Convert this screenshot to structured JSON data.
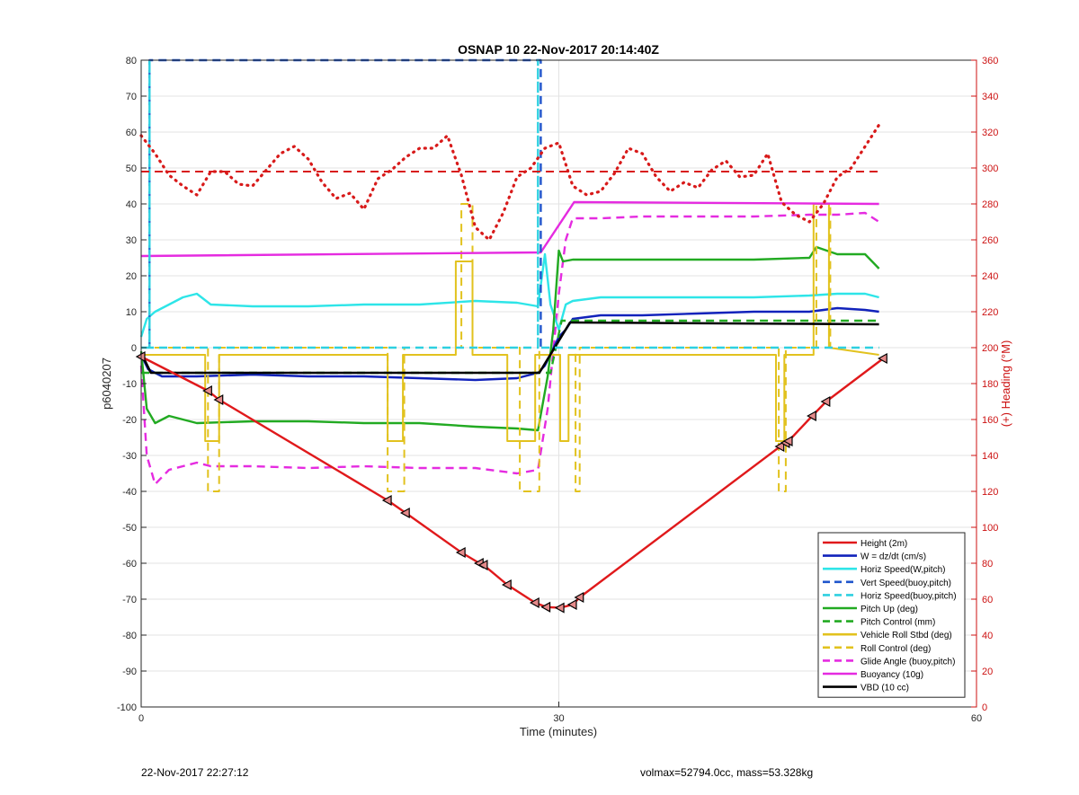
{
  "chart_data": {
    "type": "line",
    "title": "OSNAP 10 22-Nov-2017 20:14:40Z",
    "xlabel": "Time (minutes)",
    "ylabel": "p6040207",
    "y2label": "(+) Heading (°M)",
    "xlim": [
      0,
      60
    ],
    "ylim": [
      -100,
      80
    ],
    "y2lim": [
      0,
      360
    ],
    "xticks": [
      0,
      30,
      60
    ],
    "yticks": [
      -100,
      -90,
      -80,
      -70,
      -60,
      -50,
      -40,
      -30,
      -20,
      -10,
      0,
      10,
      20,
      30,
      40,
      50,
      60,
      70,
      80
    ],
    "y2ticks": [
      0,
      20,
      40,
      60,
      80,
      100,
      120,
      140,
      160,
      180,
      200,
      220,
      240,
      260,
      280,
      300,
      320,
      340,
      360
    ],
    "grid": true,
    "legend_position": "bottom-right",
    "colors": {
      "height": "#e0191b",
      "w": "#1122bb",
      "horiz_speed": "#2ee5e8",
      "vert_speed_buoy": "#1f55cc",
      "horiz_speed_buoy": "#2ed0e0",
      "pitch_up": "#22aa22",
      "pitch_control": "#22aa22",
      "vehicle_roll": "#e2c21e",
      "roll_control": "#e2c21e",
      "glide_angle": "#e52be0",
      "buoyancy": "#e52be0",
      "vbd": "#000000",
      "heading": "#d81a1a",
      "heading_axis": "#cc1111"
    },
    "series": [
      {
        "name": "Height (2m)",
        "style": "solid",
        "x": [
          0,
          4.8,
          5.6,
          17.7,
          19,
          23,
          24.3,
          24.6,
          26.3,
          28.3,
          29.1,
          30.1,
          31,
          31.5,
          45.9,
          46.3,
          46.5,
          48.2,
          49.2,
          53.3
        ],
        "y": [
          -2.5,
          -12,
          -14.5,
          -42.5,
          -46,
          -57,
          -60,
          -60.5,
          -66,
          -71,
          -72.2,
          -72.4,
          -71.5,
          -69.5,
          -27.5,
          -26.5,
          -26,
          -19,
          -15,
          -3
        ]
      },
      {
        "name": "W = dz/dt (cm/s)",
        "style": "solid",
        "x": [
          0,
          0.5,
          1.5,
          4,
          8,
          12,
          16,
          20,
          24,
          27,
          28.5,
          29,
          30,
          30.5,
          31,
          33,
          36,
          40,
          44,
          48,
          50,
          52,
          53
        ],
        "y": [
          -2,
          -6,
          -8,
          -8,
          -7.5,
          -8,
          -8,
          -8.5,
          -9,
          -8.5,
          -7,
          -5,
          3,
          5,
          8,
          9,
          9,
          9.5,
          10,
          10,
          11,
          10.5,
          10
        ]
      },
      {
        "name": "Horiz Speed(W,pitch)",
        "style": "solid",
        "x": [
          0,
          0.4,
          1,
          2,
          3,
          4,
          5,
          8,
          12,
          16,
          20,
          24,
          27,
          28.5,
          29,
          29.4,
          30,
          30.5,
          31,
          33,
          36,
          40,
          44,
          48,
          50,
          52,
          53
        ],
        "y": [
          3,
          8,
          10,
          12,
          14,
          15,
          12,
          11.5,
          11.5,
          12,
          12,
          13,
          12.5,
          11.5,
          26,
          12,
          5,
          12,
          13,
          14,
          14,
          14,
          14,
          14.5,
          15,
          15,
          14
        ]
      },
      {
        "name": "Vert Speed(buoy,pitch)",
        "style": "dashed",
        "x": [
          0.6,
          0.6,
          28.7,
          28.7
        ],
        "y": [
          0,
          80,
          80,
          0
        ]
      },
      {
        "name": "Horiz Speed(buoy,pitch)",
        "style": "dashed",
        "x": [
          0,
          0.6,
          0.6,
          0.6,
          28.5,
          28.5,
          28.5,
          53
        ],
        "y": [
          0,
          0,
          80,
          0,
          0,
          80,
          0,
          0
        ]
      },
      {
        "name": "Pitch Up (deg)",
        "style": "solid",
        "x": [
          0,
          0.4,
          1,
          2,
          4,
          8,
          12,
          16,
          20,
          24,
          27,
          28.5,
          29.2,
          29.6,
          30,
          30.3,
          31,
          33,
          36,
          40,
          44,
          48,
          48.5,
          50,
          52,
          53
        ],
        "y": [
          -1,
          -17,
          -21,
          -19,
          -21,
          -20.5,
          -20.5,
          -21,
          -21,
          -22,
          -22.5,
          -23,
          -8,
          5,
          27,
          24,
          24.5,
          24.5,
          24.5,
          24.5,
          24.5,
          25,
          28,
          26,
          26,
          22
        ]
      },
      {
        "name": "Pitch Control (mm)",
        "style": "dashed",
        "x": [
          0,
          29.4,
          30.2,
          53
        ],
        "y": [
          -7,
          -7,
          7.5,
          7.5
        ]
      },
      {
        "name": "Vehicle Roll Stbd (deg)",
        "style": "solid",
        "x": [
          0,
          4.6,
          4.6,
          5.6,
          5.6,
          17.7,
          17.7,
          18.8,
          18.8,
          22.6,
          22.6,
          23.8,
          23.8,
          26.3,
          26.3,
          28.3,
          28.3,
          30.1,
          30.1,
          30.7,
          30.7,
          45.6,
          45.6,
          46.2,
          46.2,
          48.3,
          48.3,
          49.4,
          49.4,
          53
        ],
        "y": [
          -2,
          -2,
          -26,
          -26,
          -2,
          -2,
          -26,
          -26,
          -2,
          -2,
          24,
          24,
          -2,
          -2,
          -26,
          -26,
          -2,
          -2,
          -26,
          -26,
          -2,
          -2,
          -26,
          -26,
          -2,
          -2,
          40,
          40,
          0,
          -2
        ]
      },
      {
        "name": "Roll Control (deg)",
        "style": "dashed",
        "x": [
          0,
          4.8,
          4.8,
          5.6,
          5.6,
          17.7,
          17.7,
          18.9,
          18.9,
          23,
          23,
          23.8,
          23.8,
          27.2,
          27.2,
          28.6,
          28.6,
          31.2,
          31.2,
          31.5,
          31.5,
          45.8,
          45.8,
          46.3,
          46.3,
          48.5,
          48.5,
          49.5,
          49.5,
          53
        ],
        "y": [
          0,
          0,
          -40,
          -40,
          0,
          0,
          -40,
          -40,
          0,
          0,
          40,
          40,
          0,
          0,
          -40,
          -40,
          0,
          0,
          -40,
          -40,
          0,
          0,
          -40,
          -40,
          0,
          0,
          40,
          40,
          0,
          0
        ]
      },
      {
        "name": "Glide Angle (buoy,pitch)",
        "style": "dashed",
        "x": [
          0,
          0.4,
          1,
          2,
          3,
          4,
          5,
          8,
          12,
          16,
          20,
          24,
          27,
          28.5,
          29.2,
          30,
          30.5,
          31,
          33,
          36,
          40,
          44,
          48,
          50,
          52,
          53
        ],
        "y": [
          -5,
          -30,
          -38,
          -34,
          -33,
          -32,
          -33,
          -33,
          -33.5,
          -33,
          -33.5,
          -33.5,
          -35,
          -34,
          -17,
          15,
          30,
          36,
          36,
          36.5,
          36.5,
          36.5,
          37,
          37,
          37.5,
          35
        ]
      },
      {
        "name": "Buoyancy (10g)",
        "style": "solid",
        "x": [
          0,
          28.7,
          31.1,
          53
        ],
        "y": [
          25.5,
          26.5,
          40.5,
          40
        ]
      },
      {
        "name": "VBD (10 cc)",
        "style": "solid",
        "x": [
          0,
          0.7,
          28.6,
          30.8,
          53
        ],
        "y": [
          -1.5,
          -7,
          -7,
          7,
          6.5
        ]
      },
      {
        "name": "",
        "style": "dotted",
        "axis": "right",
        "x": [
          0,
          1,
          2,
          3,
          4,
          5,
          6,
          7,
          8,
          9,
          10,
          11,
          12,
          13,
          14,
          15,
          16,
          17,
          18,
          19,
          20,
          21,
          22,
          23,
          24,
          25,
          26,
          27,
          28,
          29,
          30,
          31,
          32,
          33,
          34,
          35,
          36,
          37,
          38,
          39,
          40,
          41,
          42,
          43,
          44,
          45,
          46,
          47,
          48,
          49,
          50,
          51,
          52,
          53
        ],
        "y": [
          318,
          308,
          296,
          290,
          285,
          298,
          298,
          291,
          290,
          299,
          308,
          312,
          305,
          292,
          283,
          286,
          277,
          294,
          299,
          306,
          311,
          311,
          318,
          296,
          267,
          260,
          275,
          295,
          300,
          311,
          314,
          290,
          285,
          287,
          297,
          311,
          308,
          295,
          287,
          292,
          289,
          299,
          304,
          295,
          296,
          308,
          281,
          274,
          270,
          280,
          295,
          300,
          312,
          324
        ]
      },
      {
        "name": "",
        "style": "dashed",
        "axis": "right",
        "x": [
          0,
          53
        ],
        "y": [
          298,
          298
        ]
      }
    ],
    "markers": {
      "x": [
        0,
        4.8,
        5.6,
        17.7,
        19,
        23,
        24.3,
        24.6,
        26.3,
        28.3,
        29.1,
        30.1,
        31,
        31.5,
        45.9,
        46.3,
        46.5,
        48.2,
        49.2,
        53.3
      ],
      "y": [
        -2.5,
        -12,
        -14.5,
        -42.5,
        -46,
        -57,
        -60,
        -60.5,
        -66,
        -71,
        -72.2,
        -72.4,
        -71.5,
        -69.5,
        -27.5,
        -26.5,
        -26,
        -19,
        -15,
        -3
      ]
    }
  },
  "footer": {
    "left": "22-Nov-2017 22:27:12",
    "right": "volmax=52794.0cc, mass=53.328kg"
  }
}
